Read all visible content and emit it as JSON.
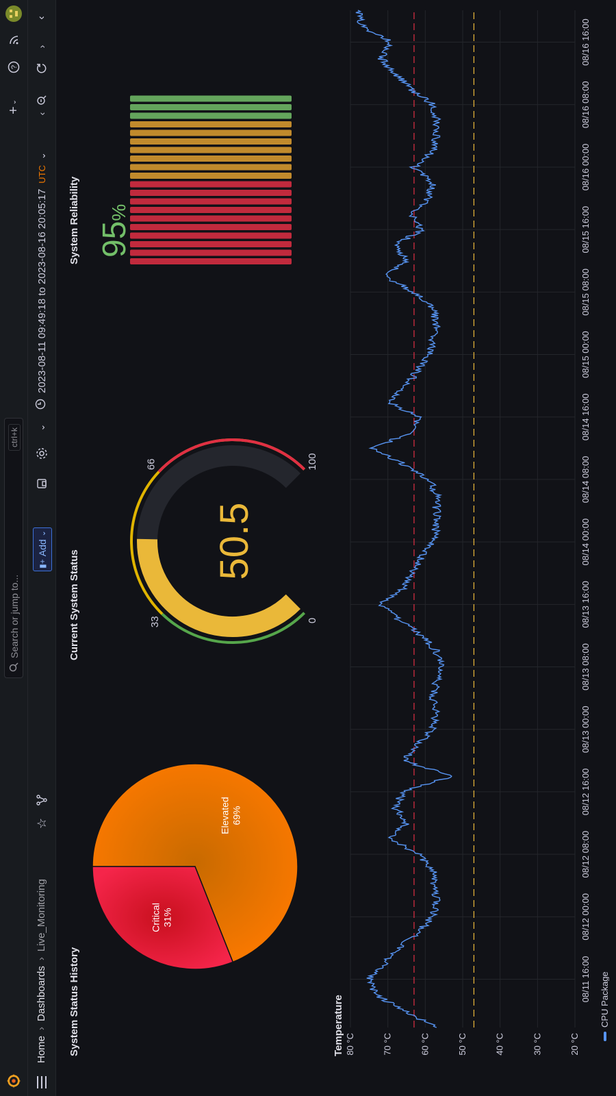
{
  "topbar": {
    "search_placeholder": "Search or jump to...",
    "shortcut": "ctrl+k"
  },
  "breadcrumb": [
    "Home",
    "Dashboards",
    "Live_Monitoring"
  ],
  "toolbar": {
    "add_label": "Add",
    "time_range": "2023-08-11 09:49:18 to 2023-08-16 20:05:17",
    "timezone": "UTC"
  },
  "panels": {
    "pie_title": "System Status History",
    "gauge_title": "Current System Status",
    "reliability_title": "System Reliability",
    "temp_title": "Temperature"
  },
  "pie": {
    "slices": [
      {
        "label": "Elevated",
        "pct_text": "69%",
        "value": 69,
        "color": "#f07800"
      },
      {
        "label": "Critical",
        "pct_text": "31%",
        "value": 31,
        "color": "#e01f3d"
      }
    ]
  },
  "gauge": {
    "value": 50.5,
    "value_text": "50.5",
    "min": 0,
    "max": 100,
    "thresholds": [
      {
        "value": 0,
        "label": "0",
        "color": "#56a64b"
      },
      {
        "value": 33,
        "label": "33",
        "color": "#e0b400"
      },
      {
        "value": 66,
        "label": "66",
        "color": "#e0b400"
      },
      {
        "value": 100,
        "label": "100",
        "color": "#e02f44"
      }
    ],
    "value_color": "#eab839"
  },
  "reliability": {
    "value": 95,
    "value_text": "95",
    "unit": "%",
    "value_color": "#73bf69",
    "bar_colors": [
      "#e02f44",
      "#e02f44",
      "#e02f44",
      "#e02f44",
      "#e02f44",
      "#e02f44",
      "#e02f44",
      "#e02f44",
      "#e02f44",
      "#e02f44",
      "#e0a030",
      "#e0a030",
      "#e0a030",
      "#e0a030",
      "#e0a030",
      "#e0a030",
      "#e0a030",
      "#73bf69",
      "#73bf69",
      "#73bf69"
    ]
  },
  "chart_data": {
    "type": "line",
    "title": "Temperature",
    "ylabel": "",
    "ylim": [
      20,
      80
    ],
    "yticks": [
      "20 °C",
      "30 °C",
      "40 °C",
      "50 °C",
      "60 °C",
      "70 °C",
      "80 °C"
    ],
    "xticks": [
      "08/11 16:00",
      "08/12 00:00",
      "08/12 08:00",
      "08/12 16:00",
      "08/13 00:00",
      "08/13 08:00",
      "08/13 16:00",
      "08/14 00:00",
      "08/14 08:00",
      "08/14 16:00",
      "08/15 00:00",
      "08/15 08:00",
      "08/15 16:00",
      "08/16 00:00",
      "08/16 08:00",
      "08/16 16:00"
    ],
    "thresholds": [
      {
        "value": 63,
        "color": "#e02f44"
      },
      {
        "value": 47,
        "color": "#eab839"
      }
    ],
    "series": [
      {
        "name": "CPU Package",
        "color": "#5794f2",
        "x": [
          "08/11 09:49",
          "08/11 12:00",
          "08/11 14:00",
          "08/11 16:00",
          "08/11 18:00",
          "08/11 20:00",
          "08/11 22:00",
          "08/12 00:00",
          "08/12 02:00",
          "08/12 04:00",
          "08/12 06:00",
          "08/12 08:00",
          "08/12 10:00",
          "08/12 12:00",
          "08/12 14:00",
          "08/12 16:00",
          "08/12 18:00",
          "08/12 20:00",
          "08/12 22:00",
          "08/13 00:00",
          "08/13 02:00",
          "08/13 04:00",
          "08/13 06:00",
          "08/13 08:00",
          "08/13 10:00",
          "08/13 12:00",
          "08/13 14:00",
          "08/13 16:00",
          "08/13 18:00",
          "08/13 20:00",
          "08/13 22:00",
          "08/14 00:00",
          "08/14 02:00",
          "08/14 04:00",
          "08/14 06:00",
          "08/14 08:00",
          "08/14 10:00",
          "08/14 12:00",
          "08/14 14:00",
          "08/14 16:00",
          "08/14 18:00",
          "08/14 20:00",
          "08/14 22:00",
          "08/15 00:00",
          "08/15 02:00",
          "08/15 04:00",
          "08/15 06:00",
          "08/15 08:00",
          "08/15 10:00",
          "08/15 12:00",
          "08/15 14:00",
          "08/15 16:00",
          "08/15 18:00",
          "08/15 20:00",
          "08/15 22:00",
          "08/16 00:00",
          "08/16 02:00",
          "08/16 04:00",
          "08/16 06:00",
          "08/16 08:00",
          "08/16 10:00",
          "08/16 12:00",
          "08/16 14:00",
          "08/16 16:00",
          "08/16 18:00",
          "08/16 20:05"
        ],
        "y": [
          57,
          66,
          73,
          75,
          71,
          67,
          62,
          58,
          57,
          58,
          58,
          62,
          69,
          65,
          68,
          66,
          53,
          66,
          62,
          58,
          57,
          58,
          57,
          56,
          57,
          61,
          67,
          72,
          66,
          64,
          61,
          58,
          57,
          57,
          57,
          59,
          66,
          74,
          64,
          62,
          70,
          65,
          62,
          59,
          58,
          57,
          58,
          63,
          71,
          65,
          68,
          61,
          64,
          59,
          58,
          63,
          58,
          57,
          57,
          58,
          64,
          68,
          72,
          69,
          77,
          78
        ]
      }
    ]
  }
}
